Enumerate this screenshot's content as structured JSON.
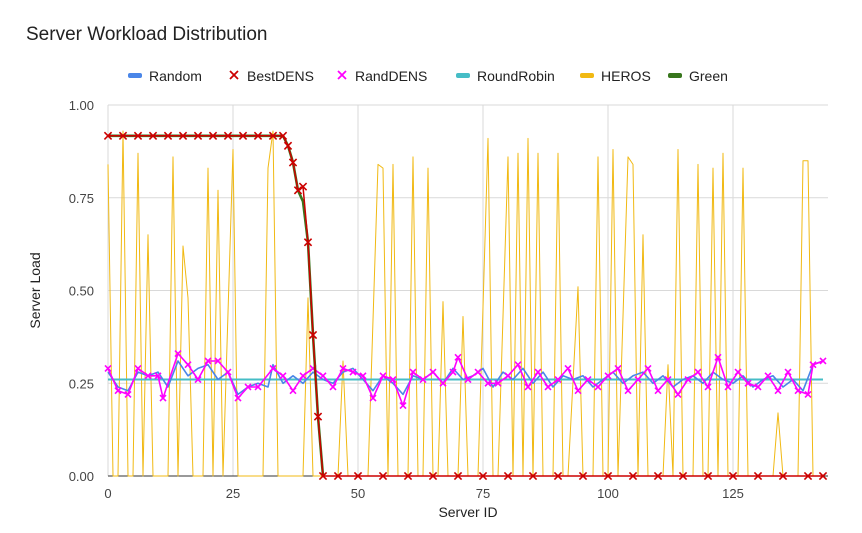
{
  "chart_data": {
    "type": "line",
    "title": "Server Workload Distribution",
    "xlabel": "Server ID",
    "ylabel": "Server Load",
    "xlim": [
      0,
      144
    ],
    "ylim": [
      0,
      1
    ],
    "x_ticks": [
      "0",
      "25",
      "50",
      "75",
      "100",
      "125"
    ],
    "x_tick_values": [
      0,
      25,
      50,
      75,
      100,
      125
    ],
    "y_ticks": [
      "0.00",
      "0.25",
      "0.50",
      "0.75",
      "1.00"
    ],
    "y_tick_values": [
      0,
      0.25,
      0.5,
      0.75,
      1.0
    ],
    "grid": true,
    "legend_position": "top",
    "series": [
      {
        "name": "Random",
        "color": "#4a86e8",
        "marker": "none",
        "points": [
          [
            0,
            0.28
          ],
          [
            2,
            0.24
          ],
          [
            4,
            0.23
          ],
          [
            6,
            0.28
          ],
          [
            8,
            0.27
          ],
          [
            10,
            0.28
          ],
          [
            12,
            0.24
          ],
          [
            14,
            0.31
          ],
          [
            16,
            0.27
          ],
          [
            18,
            0.29
          ],
          [
            20,
            0.3
          ],
          [
            22,
            0.26
          ],
          [
            24,
            0.28
          ],
          [
            26,
            0.22
          ],
          [
            28,
            0.24
          ],
          [
            30,
            0.25
          ],
          [
            32,
            0.24
          ],
          [
            33,
            0.3
          ],
          [
            35,
            0.25
          ],
          [
            37,
            0.27
          ],
          [
            39,
            0.25
          ],
          [
            41,
            0.28
          ],
          [
            43,
            0.26
          ],
          [
            45,
            0.25
          ],
          [
            47,
            0.28
          ],
          [
            49,
            0.29
          ],
          [
            51,
            0.26
          ],
          [
            53,
            0.23
          ],
          [
            55,
            0.27
          ],
          [
            57,
            0.25
          ],
          [
            59,
            0.22
          ],
          [
            61,
            0.27
          ],
          [
            63,
            0.26
          ],
          [
            65,
            0.28
          ],
          [
            67,
            0.25
          ],
          [
            69,
            0.29
          ],
          [
            71,
            0.26
          ],
          [
            73,
            0.27
          ],
          [
            75,
            0.29
          ],
          [
            77,
            0.24
          ],
          [
            79,
            0.28
          ],
          [
            81,
            0.26
          ],
          [
            83,
            0.29
          ],
          [
            85,
            0.25
          ],
          [
            87,
            0.28
          ],
          [
            89,
            0.24
          ],
          [
            91,
            0.27
          ],
          [
            93,
            0.26
          ],
          [
            95,
            0.27
          ],
          [
            97,
            0.24
          ],
          [
            99,
            0.26
          ],
          [
            101,
            0.28
          ],
          [
            103,
            0.25
          ],
          [
            105,
            0.27
          ],
          [
            107,
            0.28
          ],
          [
            109,
            0.25
          ],
          [
            111,
            0.27
          ],
          [
            113,
            0.24
          ],
          [
            115,
            0.26
          ],
          [
            117,
            0.27
          ],
          [
            119,
            0.25
          ],
          [
            121,
            0.28
          ],
          [
            123,
            0.26
          ],
          [
            125,
            0.25
          ],
          [
            127,
            0.27
          ],
          [
            129,
            0.24
          ],
          [
            131,
            0.26
          ],
          [
            133,
            0.27
          ],
          [
            135,
            0.24
          ],
          [
            137,
            0.26
          ],
          [
            139,
            0.23
          ],
          [
            141,
            0.3
          ],
          [
            143,
            0.31
          ]
        ]
      },
      {
        "name": "BestDENS",
        "color": "#cc0000",
        "marker": "x",
        "points": [
          [
            0,
            0.917
          ],
          [
            3,
            0.917
          ],
          [
            6,
            0.917
          ],
          [
            9,
            0.917
          ],
          [
            12,
            0.917
          ],
          [
            15,
            0.917
          ],
          [
            18,
            0.917
          ],
          [
            21,
            0.917
          ],
          [
            24,
            0.917
          ],
          [
            27,
            0.917
          ],
          [
            30,
            0.917
          ],
          [
            33,
            0.917
          ],
          [
            35,
            0.917
          ],
          [
            36,
            0.89
          ],
          [
            37,
            0.845
          ],
          [
            38,
            0.77
          ],
          [
            39,
            0.78
          ],
          [
            40,
            0.63
          ],
          [
            41,
            0.38
          ],
          [
            42,
            0.16
          ],
          [
            43,
            0.0
          ],
          [
            46,
            0.0
          ],
          [
            50,
            0.0
          ],
          [
            55,
            0.0
          ],
          [
            60,
            0.0
          ],
          [
            65,
            0.0
          ],
          [
            70,
            0.0
          ],
          [
            75,
            0.0
          ],
          [
            80,
            0.0
          ],
          [
            85,
            0.0
          ],
          [
            90,
            0.0
          ],
          [
            95,
            0.0
          ],
          [
            100,
            0.0
          ],
          [
            105,
            0.0
          ],
          [
            110,
            0.0
          ],
          [
            115,
            0.0
          ],
          [
            120,
            0.0
          ],
          [
            125,
            0.0
          ],
          [
            130,
            0.0
          ],
          [
            135,
            0.0
          ],
          [
            140,
            0.0
          ],
          [
            143,
            0.0
          ]
        ]
      },
      {
        "name": "RandDENS",
        "color": "#ff00ff",
        "marker": "x",
        "points": [
          [
            0,
            0.29
          ],
          [
            2,
            0.23
          ],
          [
            4,
            0.22
          ],
          [
            6,
            0.29
          ],
          [
            8,
            0.27
          ],
          [
            10,
            0.27
          ],
          [
            11,
            0.21
          ],
          [
            14,
            0.33
          ],
          [
            16,
            0.3
          ],
          [
            18,
            0.26
          ],
          [
            20,
            0.31
          ],
          [
            22,
            0.31
          ],
          [
            24,
            0.28
          ],
          [
            26,
            0.21
          ],
          [
            28,
            0.24
          ],
          [
            30,
            0.24
          ],
          [
            33,
            0.29
          ],
          [
            35,
            0.27
          ],
          [
            37,
            0.23
          ],
          [
            39,
            0.27
          ],
          [
            41,
            0.29
          ],
          [
            43,
            0.27
          ],
          [
            45,
            0.24
          ],
          [
            47,
            0.29
          ],
          [
            49,
            0.28
          ],
          [
            51,
            0.27
          ],
          [
            53,
            0.21
          ],
          [
            55,
            0.27
          ],
          [
            57,
            0.26
          ],
          [
            59,
            0.19
          ],
          [
            61,
            0.28
          ],
          [
            63,
            0.26
          ],
          [
            65,
            0.28
          ],
          [
            67,
            0.25
          ],
          [
            69,
            0.28
          ],
          [
            70,
            0.32
          ],
          [
            72,
            0.26
          ],
          [
            74,
            0.28
          ],
          [
            76,
            0.25
          ],
          [
            78,
            0.25
          ],
          [
            80,
            0.27
          ],
          [
            82,
            0.3
          ],
          [
            84,
            0.24
          ],
          [
            86,
            0.28
          ],
          [
            88,
            0.24
          ],
          [
            90,
            0.26
          ],
          [
            92,
            0.29
          ],
          [
            94,
            0.23
          ],
          [
            96,
            0.26
          ],
          [
            98,
            0.24
          ],
          [
            100,
            0.27
          ],
          [
            102,
            0.29
          ],
          [
            104,
            0.23
          ],
          [
            106,
            0.26
          ],
          [
            108,
            0.29
          ],
          [
            110,
            0.23
          ],
          [
            112,
            0.26
          ],
          [
            114,
            0.22
          ],
          [
            116,
            0.26
          ],
          [
            118,
            0.28
          ],
          [
            120,
            0.24
          ],
          [
            122,
            0.32
          ],
          [
            124,
            0.24
          ],
          [
            126,
            0.28
          ],
          [
            128,
            0.25
          ],
          [
            130,
            0.24
          ],
          [
            132,
            0.27
          ],
          [
            134,
            0.23
          ],
          [
            136,
            0.28
          ],
          [
            138,
            0.23
          ],
          [
            140,
            0.22
          ],
          [
            141,
            0.3
          ],
          [
            143,
            0.31
          ]
        ]
      },
      {
        "name": "RoundRobin",
        "color": "#46bdc6",
        "marker": "none",
        "points": [
          [
            0,
            0.26
          ],
          [
            143,
            0.26
          ]
        ]
      },
      {
        "name": "HEROS",
        "color": "#f1b913",
        "marker": "none",
        "points": [
          [
            0,
            0.84
          ],
          [
            1,
            0.0
          ],
          [
            2,
            0.0
          ],
          [
            3,
            0.93
          ],
          [
            4,
            0.0
          ],
          [
            5,
            0.0
          ],
          [
            6,
            0.87
          ],
          [
            7,
            0.0
          ],
          [
            8,
            0.65
          ],
          [
            9,
            0.0
          ],
          [
            10,
            0.0
          ],
          [
            12,
            0.0
          ],
          [
            13,
            0.86
          ],
          [
            14,
            0.0
          ],
          [
            15,
            0.62
          ],
          [
            16,
            0.48
          ],
          [
            17,
            0.0
          ],
          [
            19,
            0.0
          ],
          [
            20,
            0.83
          ],
          [
            21,
            0.0
          ],
          [
            22,
            0.77
          ],
          [
            23,
            0.0
          ],
          [
            25,
            0.88
          ],
          [
            26,
            0.0
          ],
          [
            28,
            0.0
          ],
          [
            30,
            0.0
          ],
          [
            31,
            0.0
          ],
          [
            32,
            0.83
          ],
          [
            33,
            0.93
          ],
          [
            34,
            0.0
          ],
          [
            36,
            0.0
          ],
          [
            38,
            0.0
          ],
          [
            39,
            0.0
          ],
          [
            40,
            0.48
          ],
          [
            41,
            0.0
          ],
          [
            43,
            0.0
          ],
          [
            46,
            0.0
          ],
          [
            47,
            0.31
          ],
          [
            48,
            0.0
          ],
          [
            50,
            0.0
          ],
          [
            52,
            0.0
          ],
          [
            54,
            0.84
          ],
          [
            55,
            0.83
          ],
          [
            56,
            0.0
          ],
          [
            57,
            0.84
          ],
          [
            58,
            0.0
          ],
          [
            60,
            0.0
          ],
          [
            61,
            0.86
          ],
          [
            62,
            0.0
          ],
          [
            63,
            0.0
          ],
          [
            64,
            0.83
          ],
          [
            65,
            0.0
          ],
          [
            66,
            0.0
          ],
          [
            67,
            0.47
          ],
          [
            68,
            0.0
          ],
          [
            69,
            0.0
          ],
          [
            70,
            0.0
          ],
          [
            71,
            0.43
          ],
          [
            72,
            0.0
          ],
          [
            73,
            0.0
          ],
          [
            74,
            0.0
          ],
          [
            76,
            0.91
          ],
          [
            77,
            0.0
          ],
          [
            78,
            0.0
          ],
          [
            80,
            0.86
          ],
          [
            81,
            0.0
          ],
          [
            82,
            0.87
          ],
          [
            83,
            0.0
          ],
          [
            84,
            0.91
          ],
          [
            85,
            0.0
          ],
          [
            86,
            0.87
          ],
          [
            87,
            0.0
          ],
          [
            89,
            0.0
          ],
          [
            90,
            0.87
          ],
          [
            91,
            0.0
          ],
          [
            92,
            0.0
          ],
          [
            94,
            0.51
          ],
          [
            95,
            0.0
          ],
          [
            97,
            0.0
          ],
          [
            98,
            0.86
          ],
          [
            99,
            0.0
          ],
          [
            100,
            0.0
          ],
          [
            101,
            0.88
          ],
          [
            102,
            0.0
          ],
          [
            104,
            0.86
          ],
          [
            105,
            0.84
          ],
          [
            106,
            0.0
          ],
          [
            107,
            0.65
          ],
          [
            108,
            0.0
          ],
          [
            110,
            0.0
          ],
          [
            111,
            0.0
          ],
          [
            112,
            0.3
          ],
          [
            113,
            0.0
          ],
          [
            114,
            0.88
          ],
          [
            115,
            0.0
          ],
          [
            117,
            0.0
          ],
          [
            118,
            0.84
          ],
          [
            119,
            0.0
          ],
          [
            120,
            0.0
          ],
          [
            121,
            0.83
          ],
          [
            122,
            0.0
          ],
          [
            123,
            0.87
          ],
          [
            124,
            0.0
          ],
          [
            126,
            0.0
          ],
          [
            127,
            0.83
          ],
          [
            128,
            0.0
          ],
          [
            130,
            0.0
          ],
          [
            131,
            0.0
          ],
          [
            133,
            0.0
          ],
          [
            134,
            0.17
          ],
          [
            135,
            0.0
          ],
          [
            137,
            0.0
          ],
          [
            138,
            0.0
          ],
          [
            139,
            0.85
          ],
          [
            140,
            0.85
          ],
          [
            141,
            0.0
          ],
          [
            142,
            0.0
          ],
          [
            143,
            0.0
          ]
        ]
      },
      {
        "name": "Green",
        "color": "#38761d",
        "marker": "none",
        "points": [
          [
            0,
            0.917
          ],
          [
            35,
            0.917
          ],
          [
            36,
            0.89
          ],
          [
            37,
            0.845
          ],
          [
            38,
            0.77
          ],
          [
            39,
            0.74
          ],
          [
            40,
            0.63
          ],
          [
            41,
            0.38
          ],
          [
            42,
            0.16
          ],
          [
            43,
            0.0
          ]
        ]
      }
    ]
  }
}
